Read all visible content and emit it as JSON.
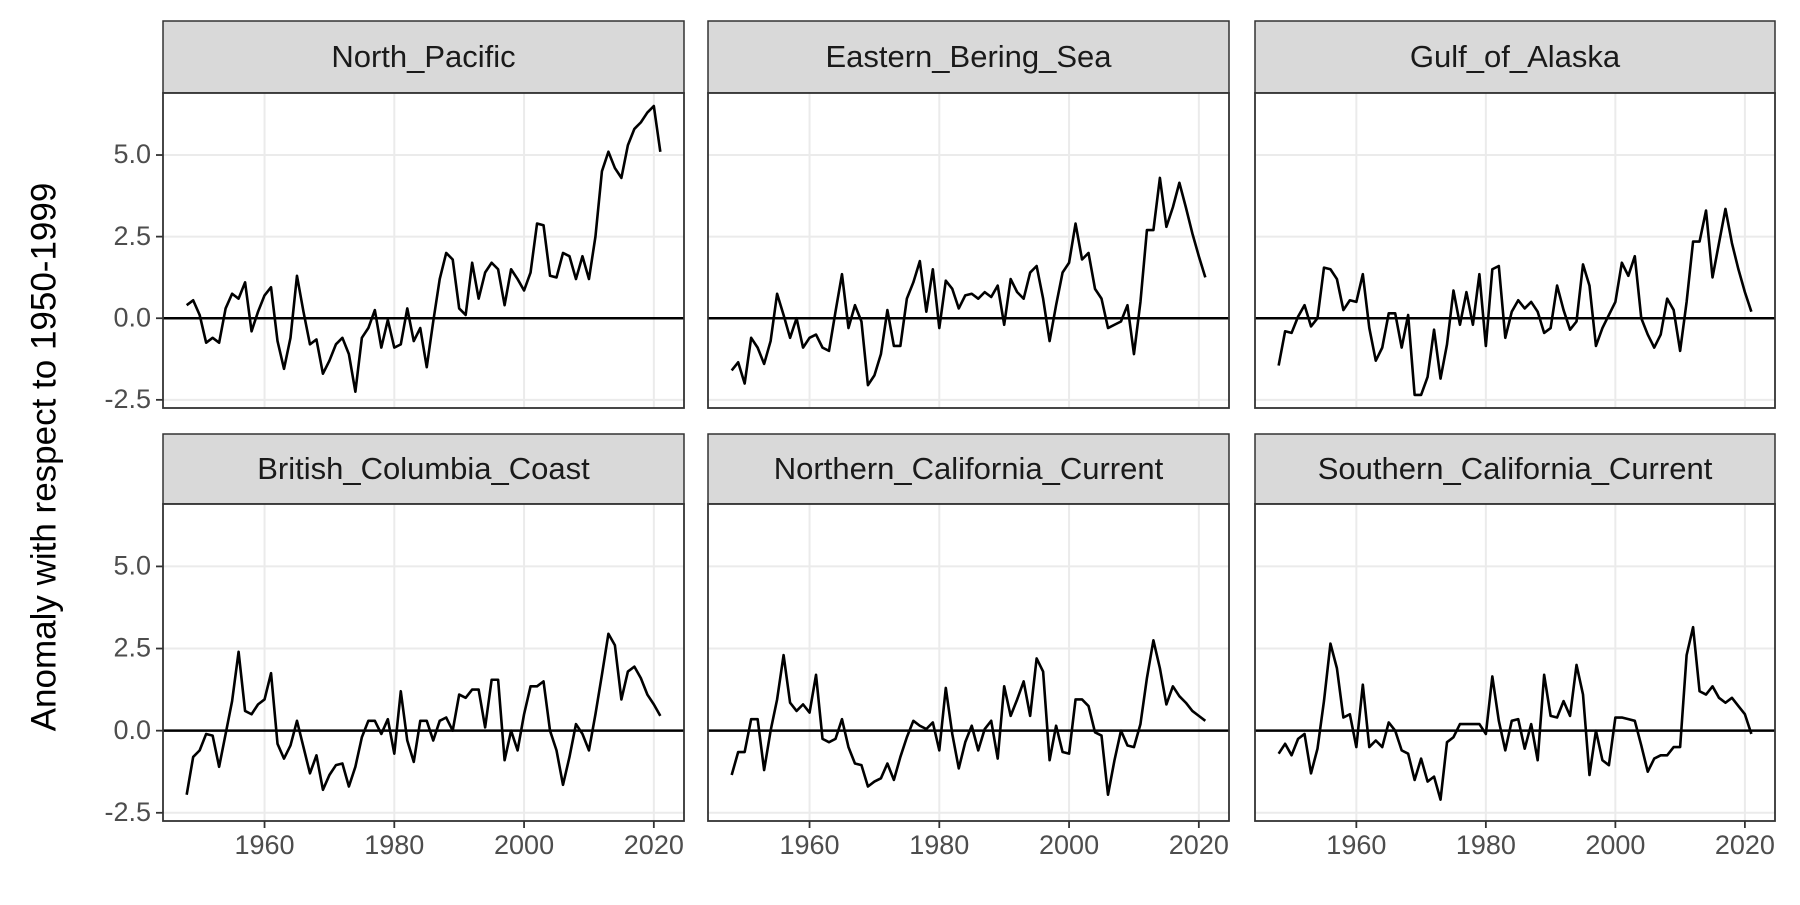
{
  "chart_data": {
    "type": "line",
    "facet": true,
    "ylabel": "Anomaly with respect to 1950-1999",
    "x": [
      1948,
      1949,
      1950,
      1951,
      1952,
      1953,
      1954,
      1955,
      1956,
      1957,
      1958,
      1959,
      1960,
      1961,
      1962,
      1963,
      1964,
      1965,
      1966,
      1967,
      1968,
      1969,
      1970,
      1971,
      1972,
      1973,
      1974,
      1975,
      1976,
      1977,
      1978,
      1979,
      1980,
      1981,
      1982,
      1983,
      1984,
      1985,
      1986,
      1987,
      1988,
      1989,
      1990,
      1991,
      1992,
      1993,
      1994,
      1995,
      1996,
      1997,
      1998,
      1999,
      2000,
      2001,
      2002,
      2003,
      2004,
      2005,
      2006,
      2007,
      2008,
      2009,
      2010,
      2011,
      2012,
      2013,
      2014,
      2015,
      2016,
      2017,
      2018,
      2019,
      2020,
      2021
    ],
    "xlim": [
      1944.35,
      2024.65
    ],
    "xticks": [
      1960,
      1980,
      2000,
      2020
    ],
    "ylim": [
      -2.75,
      6.9
    ],
    "yticks": [
      -2.5,
      {
        "value": 0,
        "label": "0.0"
      },
      2.5,
      {
        "value": 5,
        "label": "5.0"
      }
    ],
    "hline": 0,
    "grid": true,
    "series": [
      {
        "name": "North_Pacific",
        "color": "#000000",
        "values": [
          0.4,
          0.55,
          0.1,
          -0.75,
          -0.6,
          -0.75,
          0.3,
          0.75,
          0.6,
          1.1,
          -0.4,
          0.2,
          0.7,
          0.95,
          -0.7,
          -1.55,
          -0.6,
          1.3,
          0.2,
          -0.8,
          -0.65,
          -1.7,
          -1.3,
          -0.8,
          -0.6,
          -1.1,
          -2.25,
          -0.6,
          -0.3,
          0.25,
          -0.9,
          -0.05,
          -0.9,
          -0.8,
          0.3,
          -0.7,
          -0.3,
          -1.5,
          -0.1,
          1.2,
          2.0,
          1.8,
          0.3,
          0.1,
          1.7,
          0.6,
          1.4,
          1.7,
          1.5,
          0.4,
          1.5,
          1.2,
          0.85,
          1.4,
          2.9,
          2.85,
          1.3,
          1.25,
          2.0,
          1.9,
          1.2,
          1.9,
          1.2,
          2.5,
          4.5,
          5.1,
          4.6,
          4.3,
          5.3,
          5.8,
          6.0,
          6.3,
          6.5,
          5.1
        ]
      },
      {
        "name": "Eastern_Bering_Sea",
        "color": "#000000",
        "values": [
          -1.6,
          -1.35,
          -2.0,
          -0.6,
          -0.9,
          -1.4,
          -0.7,
          0.75,
          0.1,
          -0.6,
          0.0,
          -0.9,
          -0.6,
          -0.5,
          -0.9,
          -1.0,
          0.2,
          1.35,
          -0.3,
          0.4,
          -0.1,
          -2.05,
          -1.75,
          -1.1,
          0.25,
          -0.85,
          -0.85,
          0.6,
          1.1,
          1.75,
          0.2,
          1.5,
          -0.3,
          1.15,
          0.9,
          0.3,
          0.7,
          0.75,
          0.6,
          0.8,
          0.65,
          1.0,
          -0.2,
          1.2,
          0.8,
          0.6,
          1.4,
          1.6,
          0.6,
          -0.7,
          0.4,
          1.4,
          1.7,
          2.9,
          1.8,
          2.0,
          0.9,
          0.6,
          -0.3,
          -0.2,
          -0.1,
          0.4,
          -1.1,
          0.5,
          2.7,
          2.7,
          4.3,
          2.8,
          3.4,
          4.15,
          3.4,
          2.6,
          1.9,
          1.25
        ]
      },
      {
        "name": "Gulf_of_Alaska",
        "color": "#000000",
        "values": [
          -1.45,
          -0.4,
          -0.45,
          0.05,
          0.4,
          -0.25,
          0.0,
          1.55,
          1.5,
          1.2,
          0.25,
          0.55,
          0.5,
          1.35,
          -0.3,
          -1.3,
          -0.9,
          0.15,
          0.15,
          -0.9,
          0.1,
          -2.35,
          -2.35,
          -1.8,
          -0.35,
          -1.85,
          -0.8,
          0.85,
          -0.2,
          0.8,
          -0.2,
          1.35,
          -0.85,
          1.5,
          1.6,
          -0.6,
          0.2,
          0.55,
          0.3,
          0.5,
          0.2,
          -0.45,
          -0.3,
          1.0,
          0.25,
          -0.35,
          -0.1,
          1.65,
          1.0,
          -0.85,
          -0.3,
          0.1,
          0.5,
          1.7,
          1.3,
          1.9,
          0.0,
          -0.5,
          -0.9,
          -0.5,
          0.6,
          0.25,
          -1.0,
          0.5,
          2.35,
          2.35,
          3.3,
          1.25,
          2.3,
          3.35,
          2.3,
          1.5,
          0.8,
          0.2
        ]
      },
      {
        "name": "British_Columbia_Coast",
        "color": "#000000",
        "values": [
          -1.95,
          -0.8,
          -0.6,
          -0.1,
          -0.15,
          -1.1,
          -0.1,
          0.9,
          2.4,
          0.6,
          0.5,
          0.8,
          0.95,
          1.75,
          -0.4,
          -0.85,
          -0.45,
          0.3,
          -0.5,
          -1.3,
          -0.75,
          -1.8,
          -1.35,
          -1.05,
          -1.0,
          -1.7,
          -1.1,
          -0.2,
          0.3,
          0.3,
          -0.1,
          0.35,
          -0.7,
          1.2,
          -0.3,
          -0.95,
          0.3,
          0.3,
          -0.3,
          0.3,
          0.4,
          0.0,
          1.1,
          1.0,
          1.25,
          1.25,
          0.1,
          1.55,
          1.55,
          -0.9,
          0.0,
          -0.6,
          0.5,
          1.35,
          1.35,
          1.5,
          0.0,
          -0.6,
          -1.65,
          -0.8,
          0.2,
          -0.1,
          -0.6,
          0.5,
          1.7,
          2.95,
          2.6,
          0.95,
          1.8,
          1.95,
          1.6,
          1.1,
          0.8,
          0.45
        ]
      },
      {
        "name": "Northern_California_Current",
        "color": "#000000",
        "values": [
          -1.35,
          -0.65,
          -0.65,
          0.35,
          0.35,
          -1.2,
          0.0,
          0.95,
          2.3,
          0.85,
          0.6,
          0.8,
          0.55,
          1.7,
          -0.25,
          -0.35,
          -0.25,
          0.35,
          -0.5,
          -1.0,
          -1.05,
          -1.7,
          -1.55,
          -1.45,
          -1.0,
          -1.5,
          -0.8,
          -0.2,
          0.3,
          0.15,
          0.05,
          0.25,
          -0.6,
          1.3,
          -0.1,
          -1.15,
          -0.35,
          0.15,
          -0.6,
          0.05,
          0.3,
          -0.85,
          1.35,
          0.45,
          0.95,
          1.5,
          0.45,
          2.2,
          1.8,
          -0.9,
          0.15,
          -0.65,
          -0.7,
          0.95,
          0.95,
          0.75,
          -0.05,
          -0.15,
          -1.95,
          -0.9,
          0.0,
          -0.45,
          -0.5,
          0.2,
          1.6,
          2.75,
          1.9,
          0.8,
          1.35,
          1.05,
          0.85,
          0.6,
          0.45,
          0.3
        ]
      },
      {
        "name": "Southern_California_Current",
        "color": "#000000",
        "values": [
          -0.7,
          -0.4,
          -0.75,
          -0.25,
          -0.1,
          -1.3,
          -0.55,
          0.9,
          2.65,
          1.9,
          0.4,
          0.5,
          -0.5,
          1.4,
          -0.5,
          -0.3,
          -0.5,
          0.25,
          0.0,
          -0.6,
          -0.7,
          -1.5,
          -0.85,
          -1.55,
          -1.4,
          -2.1,
          -0.35,
          -0.2,
          0.2,
          0.2,
          0.2,
          0.2,
          -0.1,
          1.65,
          0.3,
          -0.6,
          0.3,
          0.35,
          -0.55,
          0.2,
          -0.9,
          1.7,
          0.45,
          0.4,
          0.9,
          0.45,
          2.0,
          1.1,
          -1.35,
          0.0,
          -0.9,
          -1.05,
          0.4,
          0.4,
          0.35,
          0.3,
          -0.45,
          -1.25,
          -0.85,
          -0.75,
          -0.75,
          -0.5,
          -0.5,
          2.3,
          3.15,
          1.2,
          1.1,
          1.35,
          1.0,
          0.85,
          1.0,
          0.75,
          0.5,
          -0.1
        ]
      }
    ]
  }
}
